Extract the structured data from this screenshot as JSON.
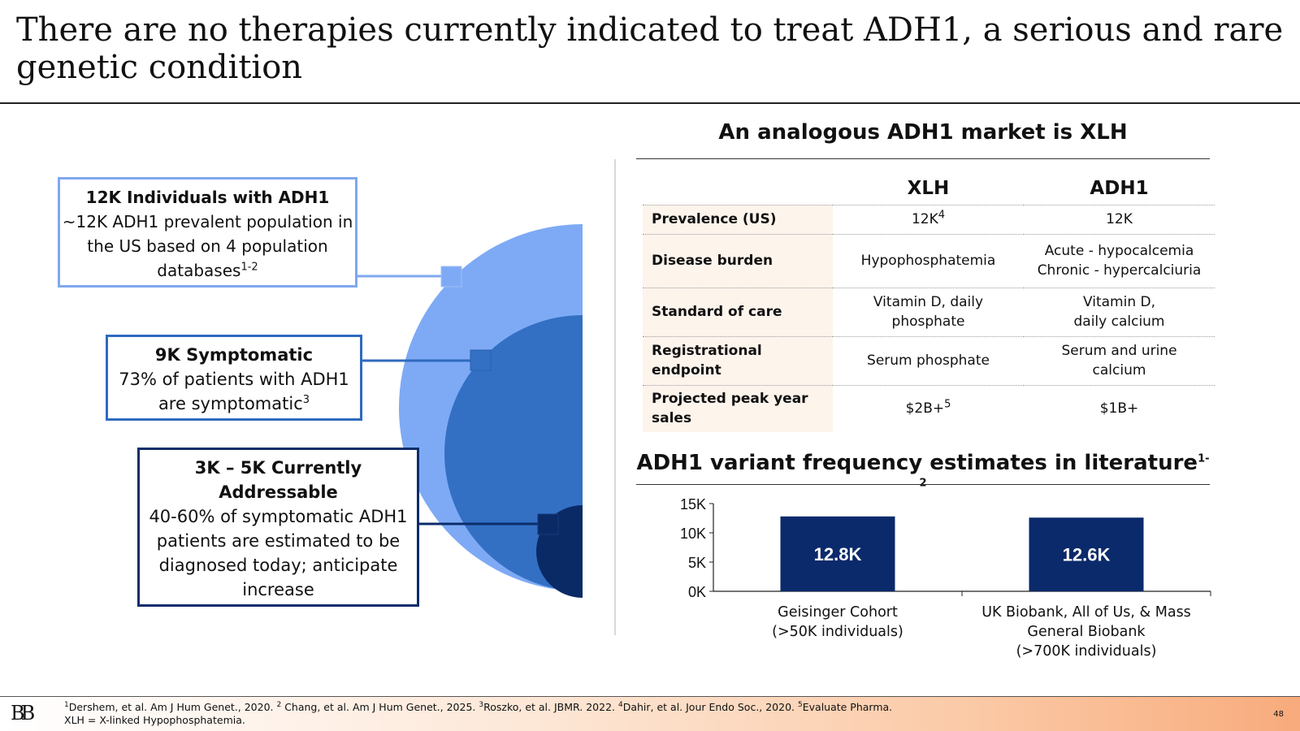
{
  "slide": {
    "title": "There are no therapies currently indicated to treat ADH1, a serious and rare genetic condition",
    "page_number": "48"
  },
  "funnel": {
    "colors": {
      "outer": "#7eaaf5",
      "middle": "#3370c4",
      "inner": "#0a2a66"
    },
    "callouts": [
      {
        "title": "12K Individuals with ADH1",
        "body": "~12K ADH1 prevalent population in the US based on 4 population databases",
        "sup": "1-2"
      },
      {
        "title": "9K Symptomatic",
        "body": "73% of patients with ADH1 are symptomatic",
        "sup": "3"
      },
      {
        "title": "3K – 5K Currently Addressable",
        "body": "40-60% of symptomatic ADH1 patients are estimated to be diagnosed today; anticipate increase",
        "sup": ""
      }
    ]
  },
  "market": {
    "title": "An analogous ADH1 market is XLH",
    "columns": [
      "XLH",
      "ADH1"
    ],
    "rows": [
      {
        "label": "Prevalence (US)",
        "xlh": "12K",
        "xlh_sup": "4",
        "adh1": "12K",
        "adh1_sup": ""
      },
      {
        "label": "Disease burden",
        "xlh": "Hypophosphatemia",
        "xlh_sup": "",
        "adh1": "Acute - hypocalcemia Chronic - hypercalciuria",
        "adh1_sup": ""
      },
      {
        "label": "Standard of care",
        "xlh": "Vitamin D, daily phosphate",
        "xlh_sup": "",
        "adh1": "Vitamin D, daily calcium",
        "adh1_sup": ""
      },
      {
        "label": "Registrational endpoint",
        "xlh": "Serum phosphate",
        "xlh_sup": "",
        "adh1": "Serum and urine calcium",
        "adh1_sup": ""
      },
      {
        "label": "Projected peak year sales",
        "xlh": "$2B+",
        "xlh_sup": "5",
        "adh1": "$1B+",
        "adh1_sup": ""
      }
    ]
  },
  "variant": {
    "title": "ADH1 variant frequency estimates in literature",
    "title_sup": "1-2"
  },
  "chart_data": {
    "type": "bar",
    "title": "ADH1 variant frequency estimates in literature",
    "categories": [
      "Geisinger Cohort (>50K individuals)",
      "UK Biobank, All of Us, & Mass General Biobank (>700K individuals)"
    ],
    "category_lines": [
      [
        "Geisinger Cohort",
        "(>50K individuals)"
      ],
      [
        "UK Biobank, All of Us, & Mass",
        "General Biobank",
        "(>700K individuals)"
      ]
    ],
    "values": [
      12.8,
      12.6
    ],
    "data_labels": [
      "12.8K",
      "12.6K"
    ],
    "ylim": [
      0,
      15
    ],
    "yticks": [
      0,
      5,
      10,
      15
    ],
    "ytick_labels": [
      "0K",
      "5K",
      "10K",
      "15K"
    ],
    "bar_color": "#0b2a6b",
    "grid": false,
    "xlabel": "",
    "ylabel": ""
  },
  "footer": {
    "logo": "BB",
    "refs": [
      {
        "sup": "1",
        "text": "Dershem, et al. Am J Hum Genet., 2020. "
      },
      {
        "sup": "2",
        "text": " Chang, et al. Am J Hum Genet., 2025. "
      },
      {
        "sup": "3",
        "text": "Roszko, et al. JBMR. 2022. "
      },
      {
        "sup": "4",
        "text": "Dahir, et al. Jour Endo Soc., 2020. "
      },
      {
        "sup": "5",
        "text": "Evaluate Pharma."
      }
    ],
    "abbrev": "XLH = X-linked Hypophosphatemia."
  }
}
